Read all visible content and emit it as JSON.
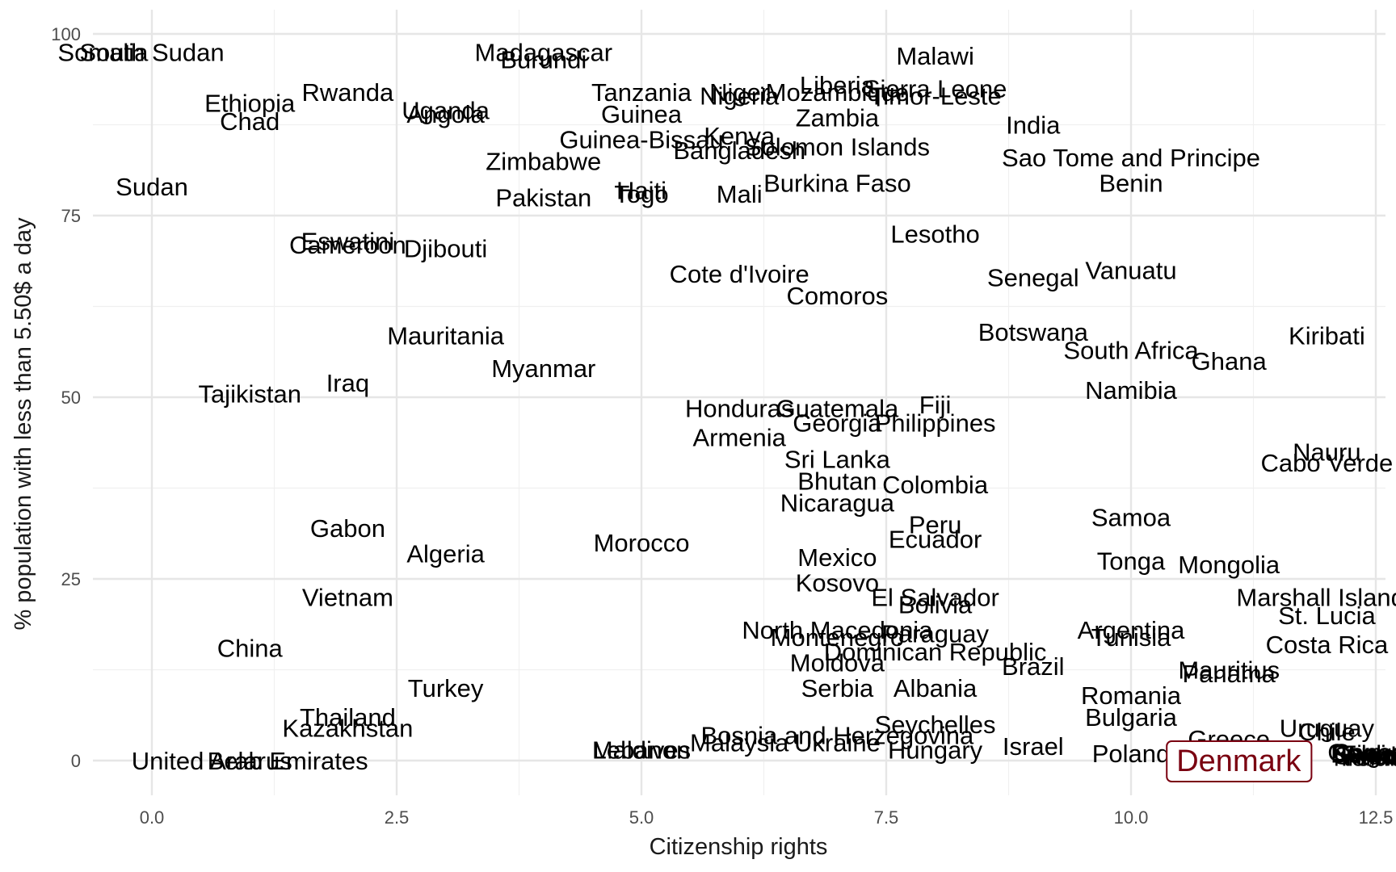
{
  "chart_data": {
    "type": "scatter",
    "title": "",
    "xlabel": "Citizenship rights",
    "ylabel": "% population with less than 5.50$ a day",
    "xlim": [
      -0.6,
      12.5
    ],
    "ylim": [
      -5,
      102
    ],
    "x_ticks": [
      0.0,
      2.5,
      5.0,
      7.5,
      10.0,
      12.5
    ],
    "x_tick_labels": [
      "0.0",
      "2.5",
      "5.0",
      "7.5",
      "10.0",
      "12.5"
    ],
    "y_ticks": [
      0,
      25,
      50,
      75,
      100
    ],
    "y_tick_labels": [
      "0",
      "25",
      "50",
      "75",
      "100"
    ],
    "grid": true,
    "highlight": {
      "label": "Denmark",
      "x": 10.2,
      "y": 0,
      "color": "#7a0010"
    },
    "points": [
      {
        "label": "Somalia",
        "x": -0.5,
        "y": 97.5
      },
      {
        "label": "South Sudan",
        "x": 0.0,
        "y": 97.5
      },
      {
        "label": "Ethiopia",
        "x": 1.0,
        "y": 90.5
      },
      {
        "label": "Chad",
        "x": 1.0,
        "y": 88.0
      },
      {
        "label": "Rwanda",
        "x": 2.0,
        "y": 92.0
      },
      {
        "label": "Uganda",
        "x": 3.0,
        "y": 89.5
      },
      {
        "label": "Angola",
        "x": 3.0,
        "y": 89.0
      },
      {
        "label": "Madagascar",
        "x": 4.0,
        "y": 97.5
      },
      {
        "label": "Burundi",
        "x": 4.0,
        "y": 96.5
      },
      {
        "label": "Tanzania",
        "x": 5.0,
        "y": 92.0
      },
      {
        "label": "Guinea",
        "x": 5.0,
        "y": 89.0
      },
      {
        "label": "Niger",
        "x": 6.0,
        "y": 92.0
      },
      {
        "label": "Nigeria",
        "x": 6.0,
        "y": 91.5
      },
      {
        "label": "Mozambique",
        "x": 7.0,
        "y": 92.0
      },
      {
        "label": "Liberia",
        "x": 7.0,
        "y": 93.0
      },
      {
        "label": "Malawi",
        "x": 8.0,
        "y": 97.0
      },
      {
        "label": "Sierra Leone",
        "x": 8.0,
        "y": 92.5
      },
      {
        "label": "Timor-Leste",
        "x": 8.0,
        "y": 91.5
      },
      {
        "label": "Zambia",
        "x": 7.0,
        "y": 88.5
      },
      {
        "label": "India",
        "x": 9.0,
        "y": 87.5
      },
      {
        "label": "Guinea-Bissau",
        "x": 5.0,
        "y": 85.5
      },
      {
        "label": "Kenya",
        "x": 6.0,
        "y": 86.0
      },
      {
        "label": "Bangladesh",
        "x": 6.0,
        "y": 84.0
      },
      {
        "label": "Solomon Islands",
        "x": 7.0,
        "y": 84.5
      },
      {
        "label": "Zimbabwe",
        "x": 4.0,
        "y": 82.5
      },
      {
        "label": "Sao Tome and Principe",
        "x": 10.0,
        "y": 83.0
      },
      {
        "label": "Sudan",
        "x": 0.0,
        "y": 79.0
      },
      {
        "label": "Burkina Faso",
        "x": 7.0,
        "y": 79.5
      },
      {
        "label": "Benin",
        "x": 10.0,
        "y": 79.5
      },
      {
        "label": "Pakistan",
        "x": 4.0,
        "y": 77.5
      },
      {
        "label": "Haiti",
        "x": 5.0,
        "y": 78.5
      },
      {
        "label": "Togo",
        "x": 5.0,
        "y": 78.0
      },
      {
        "label": "Mali",
        "x": 6.0,
        "y": 78.0
      },
      {
        "label": "Lesotho",
        "x": 8.0,
        "y": 72.5
      },
      {
        "label": "Eswatini",
        "x": 2.0,
        "y": 71.5
      },
      {
        "label": "Cameroon",
        "x": 2.0,
        "y": 71.0
      },
      {
        "label": "Djibouti",
        "x": 3.0,
        "y": 70.5
      },
      {
        "label": "Vanuatu",
        "x": 10.0,
        "y": 67.5
      },
      {
        "label": "Cote d'Ivoire",
        "x": 6.0,
        "y": 67.0
      },
      {
        "label": "Senegal",
        "x": 9.0,
        "y": 66.5
      },
      {
        "label": "Comoros",
        "x": 7.0,
        "y": 64.0
      },
      {
        "label": "Botswana",
        "x": 9.0,
        "y": 59.0
      },
      {
        "label": "Kiribati",
        "x": 12.0,
        "y": 58.5
      },
      {
        "label": "Mauritania",
        "x": 3.0,
        "y": 58.5
      },
      {
        "label": "South Africa",
        "x": 10.0,
        "y": 56.5
      },
      {
        "label": "Ghana",
        "x": 11.0,
        "y": 55.0
      },
      {
        "label": "Myanmar",
        "x": 4.0,
        "y": 54.0
      },
      {
        "label": "Iraq",
        "x": 2.0,
        "y": 52.0
      },
      {
        "label": "Tajikistan",
        "x": 1.0,
        "y": 50.5
      },
      {
        "label": "Namibia",
        "x": 10.0,
        "y": 51.0
      },
      {
        "label": "Honduras",
        "x": 6.0,
        "y": 48.5
      },
      {
        "label": "Guatemala",
        "x": 7.0,
        "y": 48.5
      },
      {
        "label": "Fiji",
        "x": 8.0,
        "y": 49.0
      },
      {
        "label": "Georgia",
        "x": 7.0,
        "y": 46.5
      },
      {
        "label": "Philippines",
        "x": 8.0,
        "y": 46.5
      },
      {
        "label": "Armenia",
        "x": 6.0,
        "y": 44.5
      },
      {
        "label": "Nauru",
        "x": 12.0,
        "y": 42.5
      },
      {
        "label": "Cabo Verde",
        "x": 12.0,
        "y": 41.0
      },
      {
        "label": "Sri Lanka",
        "x": 7.0,
        "y": 41.5
      },
      {
        "label": "Bhutan",
        "x": 7.0,
        "y": 38.5
      },
      {
        "label": "Colombia",
        "x": 8.0,
        "y": 38.0
      },
      {
        "label": "Nicaragua",
        "x": 7.0,
        "y": 35.5
      },
      {
        "label": "Samoa",
        "x": 10.0,
        "y": 33.5
      },
      {
        "label": "Gabon",
        "x": 2.0,
        "y": 32.0
      },
      {
        "label": "Peru",
        "x": 8.0,
        "y": 32.5
      },
      {
        "label": "Ecuador",
        "x": 8.0,
        "y": 30.5
      },
      {
        "label": "Morocco",
        "x": 5.0,
        "y": 30.0
      },
      {
        "label": "Algeria",
        "x": 3.0,
        "y": 28.5
      },
      {
        "label": "Mexico",
        "x": 7.0,
        "y": 28.0
      },
      {
        "label": "Tonga",
        "x": 10.0,
        "y": 27.5
      },
      {
        "label": "Mongolia",
        "x": 11.0,
        "y": 27.0
      },
      {
        "label": "Kosovo",
        "x": 7.0,
        "y": 24.5
      },
      {
        "label": "Vietnam",
        "x": 2.0,
        "y": 22.5
      },
      {
        "label": "El Salvador",
        "x": 8.0,
        "y": 22.5
      },
      {
        "label": "Bolivia",
        "x": 8.0,
        "y": 21.5
      },
      {
        "label": "Marshall Islands",
        "x": 12.0,
        "y": 22.5
      },
      {
        "label": "St. Lucia",
        "x": 12.0,
        "y": 20.0
      },
      {
        "label": "North Macedonia",
        "x": 7.0,
        "y": 18.0
      },
      {
        "label": "Montenegro",
        "x": 7.0,
        "y": 17.0
      },
      {
        "label": "Paraguay",
        "x": 8.0,
        "y": 17.5
      },
      {
        "label": "Argentina",
        "x": 10.0,
        "y": 18.0
      },
      {
        "label": "Tunisia",
        "x": 10.0,
        "y": 17.0
      },
      {
        "label": "China",
        "x": 1.0,
        "y": 15.5
      },
      {
        "label": "Costa Rica",
        "x": 12.0,
        "y": 16.0
      },
      {
        "label": "Dominican Republic",
        "x": 8.0,
        "y": 15.0
      },
      {
        "label": "Moldova",
        "x": 7.0,
        "y": 13.5
      },
      {
        "label": "Brazil",
        "x": 9.0,
        "y": 13.0
      },
      {
        "label": "Mauritius",
        "x": 11.0,
        "y": 12.5
      },
      {
        "label": "Panama",
        "x": 11.0,
        "y": 12.0
      },
      {
        "label": "Turkey",
        "x": 3.0,
        "y": 10.0
      },
      {
        "label": "Serbia",
        "x": 7.0,
        "y": 10.0
      },
      {
        "label": "Albania",
        "x": 8.0,
        "y": 10.0
      },
      {
        "label": "Romania",
        "x": 10.0,
        "y": 9.0
      },
      {
        "label": "Thailand",
        "x": 2.0,
        "y": 6.0
      },
      {
        "label": "Bulgaria",
        "x": 10.0,
        "y": 6.0
      },
      {
        "label": "Kazakhstan",
        "x": 2.0,
        "y": 4.5
      },
      {
        "label": "Seychelles",
        "x": 8.0,
        "y": 5.0
      },
      {
        "label": "Uruguay",
        "x": 12.0,
        "y": 4.5
      },
      {
        "label": "Chile",
        "x": 12.0,
        "y": 4.0
      },
      {
        "label": "Greece",
        "x": 11.0,
        "y": 3.0
      },
      {
        "label": "Bosnia and Herzegovina",
        "x": 7.0,
        "y": 3.5
      },
      {
        "label": "Malaysia",
        "x": 6.0,
        "y": 2.5
      },
      {
        "label": "Ukraine",
        "x": 7.0,
        "y": 2.5
      },
      {
        "label": "Israel",
        "x": 9.0,
        "y": 2.0
      },
      {
        "label": "Maldives",
        "x": 5.0,
        "y": 1.5
      },
      {
        "label": "Lebanon",
        "x": 5.0,
        "y": 1.5
      },
      {
        "label": "Hungary",
        "x": 8.0,
        "y": 1.5
      },
      {
        "label": "Poland",
        "x": 10.0,
        "y": 1.0
      },
      {
        "label": "United Arab Emirates",
        "x": 1.0,
        "y": 0.0
      },
      {
        "label": "Belarus",
        "x": 1.0,
        "y": 0.0
      }
    ]
  }
}
